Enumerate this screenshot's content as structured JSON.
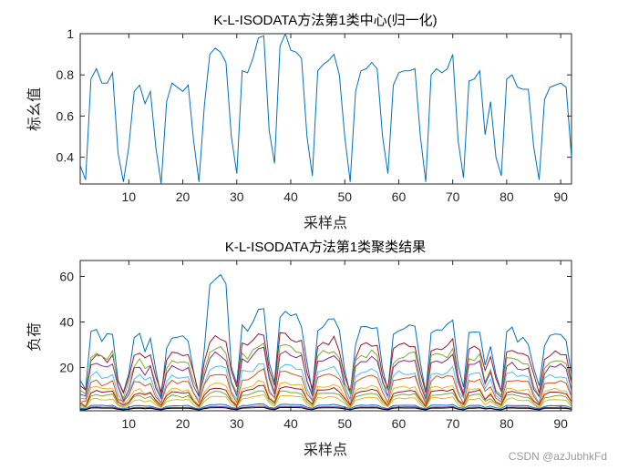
{
  "watermark": "CSDN @azJubhkFd",
  "chart_data": [
    {
      "type": "line",
      "title": "K-L-ISODATA方法第1类中心(归一化)",
      "xlabel": "采样点",
      "ylabel": "标幺值",
      "xlim": [
        1,
        92
      ],
      "ylim": [
        0.27,
        1.0
      ],
      "xticks": [
        10,
        20,
        30,
        40,
        50,
        60,
        70,
        80,
        90
      ],
      "yticks": [
        0.4,
        0.6,
        0.8,
        1
      ],
      "ytick_labels": [
        "0.4",
        "0.6",
        "0.8",
        "1"
      ],
      "grid": false,
      "series": [
        {
          "color": "#0072BD",
          "x": [
            1,
            2,
            3,
            4,
            5,
            6,
            7,
            8,
            9,
            10,
            11,
            12,
            13,
            14,
            15,
            16,
            17,
            18,
            19,
            20,
            21,
            22,
            23,
            24,
            25,
            26,
            27,
            28,
            29,
            30,
            31,
            32,
            33,
            34,
            35,
            36,
            37,
            38,
            39,
            40,
            41,
            42,
            43,
            44,
            45,
            46,
            47,
            48,
            49,
            50,
            51,
            52,
            53,
            54,
            55,
            56,
            57,
            58,
            59,
            60,
            61,
            62,
            63,
            64,
            65,
            66,
            67,
            68,
            69,
            70,
            71,
            72,
            73,
            74,
            75,
            76,
            77,
            78,
            79,
            80,
            81,
            82,
            83,
            84,
            85,
            86,
            87,
            88,
            89,
            90,
            91,
            92
          ],
          "values": [
            0.36,
            0.29,
            0.78,
            0.83,
            0.76,
            0.76,
            0.81,
            0.42,
            0.28,
            0.45,
            0.72,
            0.75,
            0.66,
            0.72,
            0.45,
            0.27,
            0.67,
            0.76,
            0.74,
            0.72,
            0.75,
            0.48,
            0.28,
            0.65,
            0.9,
            0.93,
            0.91,
            0.86,
            0.5,
            0.32,
            0.82,
            0.81,
            0.88,
            0.98,
            0.99,
            0.53,
            0.37,
            0.94,
            1.0,
            0.92,
            0.91,
            0.88,
            0.5,
            0.31,
            0.82,
            0.85,
            0.87,
            0.9,
            0.8,
            0.5,
            0.28,
            0.72,
            0.82,
            0.83,
            0.86,
            0.83,
            0.5,
            0.32,
            0.75,
            0.81,
            0.82,
            0.82,
            0.83,
            0.5,
            0.28,
            0.8,
            0.83,
            0.81,
            0.83,
            0.9,
            0.48,
            0.3,
            0.77,
            0.78,
            0.82,
            0.51,
            0.67,
            0.4,
            0.31,
            0.78,
            0.8,
            0.74,
            0.73,
            0.73,
            0.45,
            0.29,
            0.68,
            0.74,
            0.75,
            0.76,
            0.74,
            0.4
          ]
        }
      ]
    },
    {
      "type": "line",
      "title": "K-L-ISODATA方法第1类聚类结果",
      "xlabel": "采样点",
      "ylabel": "负荷",
      "xlim": [
        1,
        92
      ],
      "ylim": [
        1,
        67
      ],
      "xticks": [
        10,
        20,
        30,
        40,
        50,
        60,
        70,
        80,
        90
      ],
      "yticks": [
        20,
        40,
        60
      ],
      "ytick_labels": [
        "20",
        "40",
        "60"
      ],
      "grid": false,
      "profile_values": [
        0.36,
        0.29,
        0.78,
        0.83,
        0.76,
        0.76,
        0.81,
        0.42,
        0.28,
        0.45,
        0.72,
        0.75,
        0.66,
        0.72,
        0.45,
        0.27,
        0.67,
        0.76,
        0.74,
        0.72,
        0.75,
        0.48,
        0.28,
        0.65,
        0.9,
        0.93,
        0.91,
        0.86,
        0.5,
        0.32,
        0.82,
        0.81,
        0.88,
        0.98,
        0.99,
        0.53,
        0.37,
        0.94,
        1.0,
        0.92,
        0.91,
        0.88,
        0.5,
        0.31,
        0.82,
        0.85,
        0.87,
        0.9,
        0.8,
        0.5,
        0.28,
        0.72,
        0.82,
        0.83,
        0.86,
        0.83,
        0.5,
        0.32,
        0.75,
        0.81,
        0.82,
        0.82,
        0.83,
        0.5,
        0.28,
        0.8,
        0.83,
        0.81,
        0.83,
        0.9,
        0.48,
        0.3,
        0.77,
        0.78,
        0.82,
        0.51,
        0.67,
        0.4,
        0.31,
        0.78,
        0.8,
        0.74,
        0.73,
        0.73,
        0.45,
        0.29,
        0.68,
        0.74,
        0.75,
        0.76,
        0.74,
        0.4
      ],
      "series": [
        {
          "color": "#0072BD",
          "peak": 46,
          "base": 9,
          "first_peak": 45,
          "max": 66
        },
        {
          "color": "#A2142F",
          "peak": 36,
          "base": 9,
          "first_peak": 31
        },
        {
          "color": "#77AC30",
          "peak": 31,
          "base": 7,
          "first_peak": 33
        },
        {
          "color": "#7E2F8E",
          "peak": 28,
          "base": 6,
          "first_peak": 28
        },
        {
          "color": "#4DBEEE",
          "peak": 22,
          "base": 5,
          "first_peak": 21
        },
        {
          "color": "#D95319",
          "peak": 19,
          "base": 4,
          "first_peak": 17
        },
        {
          "color": "#EDB120",
          "peak": 14,
          "base": 3,
          "first_peak": 14
        },
        {
          "color": "#A2142F",
          "peak": 12,
          "base": 3,
          "first_peak": 12
        },
        {
          "color": "#77AC30",
          "peak": 10,
          "base": 2.5,
          "first_peak": 10
        },
        {
          "color": "#EDB120",
          "peak": 8,
          "base": 2,
          "first_peak": 8
        },
        {
          "color": "#0072BD",
          "peak": 4,
          "base": 1.8,
          "first_peak": 4
        },
        {
          "color": "#7E2F8E",
          "peak": 3,
          "base": 1.5,
          "first_peak": 3
        },
        {
          "color": "#000000",
          "peak": 2.5,
          "base": 1.4,
          "first_peak": 2.5
        }
      ]
    }
  ]
}
